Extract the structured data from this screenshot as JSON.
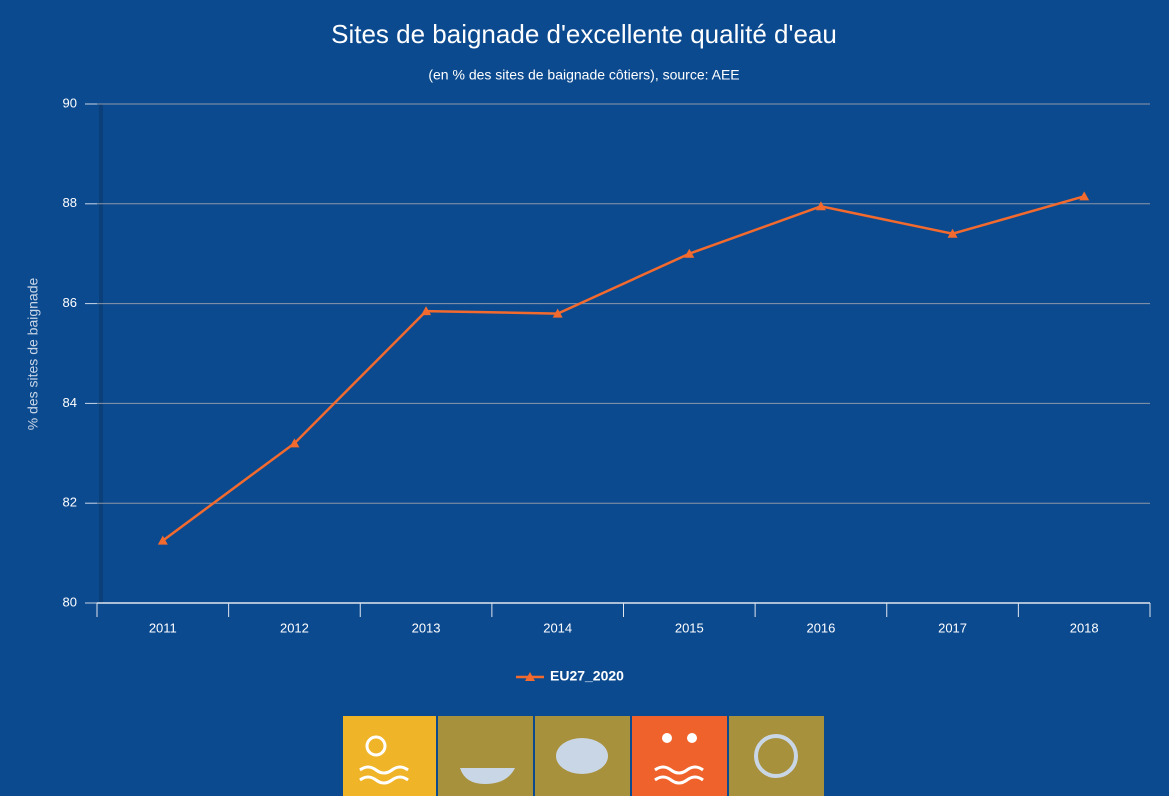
{
  "chart_data": {
    "type": "line",
    "title": "Sites de baignade d'excellente qualité d'eau",
    "subtitle": "(en % des sites de baignade côtiers), source: AEE",
    "y_label": "% des sites de baignade",
    "categories": [
      "2011",
      "2012",
      "2013",
      "2014",
      "2015",
      "2016",
      "2017",
      "2018"
    ],
    "series": [
      {
        "name": "EU27_2020",
        "color": "#f26a2e",
        "values": [
          81.25,
          83.2,
          85.85,
          85.8,
          87.0,
          87.95,
          87.4,
          88.15
        ]
      }
    ],
    "ylim": [
      80,
      90
    ],
    "yticks": [
      80,
      82,
      84,
      86,
      88,
      90
    ],
    "grid": true
  }
}
